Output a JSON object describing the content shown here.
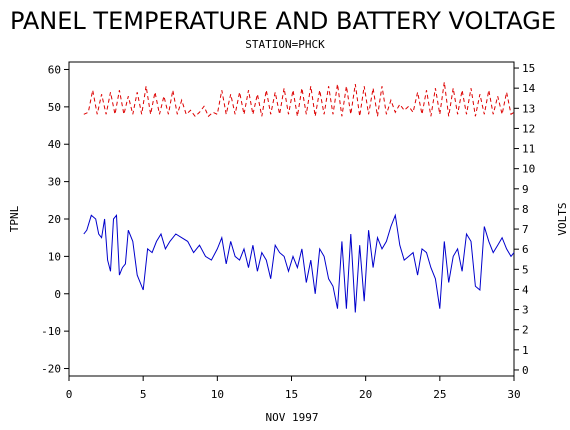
{
  "chart_data": {
    "type": "line",
    "title": "PANEL TEMPERATURE AND BATTERY VOLTAGE",
    "subtitle": "STATION=PHCK",
    "xlabel": "NOV 1997",
    "ylabel_left": "TPNL",
    "ylabel_right": "VOLTS",
    "xlim": [
      0,
      30
    ],
    "ylim_left": [
      -22,
      62
    ],
    "ylim_right": [
      -0.3,
      15.3
    ],
    "x_ticks": [
      0,
      5,
      10,
      15,
      20,
      25,
      30
    ],
    "y_ticks_left": [
      -20,
      -10,
      0,
      10,
      20,
      30,
      40,
      50,
      60
    ],
    "y_ticks_right": [
      0,
      1,
      2,
      3,
      4,
      5,
      6,
      7,
      8,
      9,
      10,
      11,
      12,
      13,
      14,
      15
    ],
    "grid": false,
    "series": [
      {
        "axis": "left",
        "color": "#0000cc",
        "style": "solid",
        "x": [
          1,
          1.2,
          1.5,
          1.8,
          2,
          2.2,
          2.4,
          2.6,
          2.8,
          3,
          3.2,
          3.4,
          3.6,
          3.8,
          4,
          4.3,
          4.6,
          5,
          5.3,
          5.6,
          5.9,
          6.2,
          6.5,
          6.8,
          7.2,
          7.6,
          8,
          8.4,
          8.8,
          9.2,
          9.6,
          10,
          10.3,
          10.6,
          10.9,
          11.2,
          11.5,
          11.8,
          12.1,
          12.4,
          12.7,
          13,
          13.3,
          13.6,
          13.9,
          14.2,
          14.5,
          14.8,
          15.1,
          15.4,
          15.7,
          16,
          16.3,
          16.6,
          16.9,
          17.2,
          17.5,
          17.8,
          18.1,
          18.4,
          18.7,
          19,
          19.3,
          19.6,
          19.9,
          20.2,
          20.5,
          20.8,
          21.1,
          21.4,
          21.7,
          22,
          22.3,
          22.6,
          22.9,
          23.2,
          23.5,
          23.8,
          24.1,
          24.4,
          24.7,
          25,
          25.3,
          25.6,
          25.9,
          26.2,
          26.5,
          26.8,
          27.1,
          27.4,
          27.7,
          28,
          28.3,
          28.6,
          28.9,
          29.2,
          29.5,
          29.8,
          30
        ],
        "y": [
          16,
          17,
          21,
          20,
          16,
          15,
          20,
          9,
          6,
          20,
          21,
          5,
          7,
          8,
          17,
          14,
          5,
          1,
          12,
          11,
          14,
          16,
          12,
          14,
          16,
          15,
          14,
          11,
          13,
          10,
          9,
          12,
          15,
          8,
          14,
          10,
          9,
          12,
          7,
          13,
          6,
          11,
          9,
          4,
          13,
          11,
          10,
          6,
          10,
          7,
          12,
          3,
          9,
          0,
          12,
          10,
          4,
          2,
          -4,
          14,
          -4,
          16,
          -5,
          13,
          -2,
          17,
          7,
          15,
          12,
          14,
          18,
          21,
          13,
          9,
          10,
          11,
          5,
          12,
          11,
          7,
          4,
          -4,
          14,
          3,
          10,
          12,
          6,
          16,
          14,
          2,
          1,
          18,
          14,
          11,
          13,
          15,
          12,
          10,
          11
        ]
      },
      {
        "axis": "right",
        "color": "#dd0000",
        "style": "dashed",
        "x": [
          1,
          1.3,
          1.6,
          1.9,
          2.2,
          2.5,
          2.8,
          3.1,
          3.4,
          3.7,
          4,
          4.3,
          4.6,
          4.9,
          5.2,
          5.5,
          5.8,
          6.1,
          6.4,
          6.7,
          7,
          7.3,
          7.6,
          7.9,
          8.2,
          8.5,
          8.8,
          9.1,
          9.4,
          9.7,
          10,
          10.3,
          10.6,
          10.9,
          11.2,
          11.5,
          11.8,
          12.1,
          12.4,
          12.7,
          13,
          13.3,
          13.6,
          13.9,
          14.2,
          14.5,
          14.8,
          15.1,
          15.4,
          15.7,
          16,
          16.3,
          16.6,
          16.9,
          17.2,
          17.5,
          17.8,
          18.1,
          18.4,
          18.7,
          19,
          19.3,
          19.6,
          19.9,
          20.2,
          20.5,
          20.8,
          21.1,
          21.4,
          21.7,
          22,
          22.3,
          22.6,
          22.9,
          23.2,
          23.5,
          23.8,
          24.1,
          24.4,
          24.7,
          25,
          25.3,
          25.6,
          25.9,
          26.2,
          26.5,
          26.8,
          27.1,
          27.4,
          27.7,
          28,
          28.3,
          28.6,
          28.9,
          29.2,
          29.5,
          29.8,
          30
        ],
        "y": [
          12.7,
          12.8,
          13.9,
          12.7,
          13.7,
          12.7,
          13.8,
          12.7,
          13.9,
          12.7,
          13.6,
          12.7,
          13.8,
          12.7,
          14.1,
          12.7,
          13.8,
          12.7,
          13.6,
          12.7,
          13.9,
          12.7,
          13.4,
          12.7,
          12.9,
          12.6,
          12.8,
          13.1,
          12.6,
          12.8,
          12.7,
          13.9,
          12.7,
          13.7,
          12.7,
          13.8,
          12.7,
          13.9,
          12.7,
          13.7,
          12.6,
          13.9,
          12.7,
          13.8,
          12.7,
          14.0,
          12.7,
          13.9,
          12.6,
          14.0,
          12.7,
          14.1,
          12.6,
          13.9,
          12.7,
          14.1,
          12.7,
          14.2,
          12.6,
          14.1,
          12.7,
          14.2,
          12.6,
          14.1,
          12.7,
          14.0,
          12.6,
          14.1,
          12.7,
          13.4,
          12.8,
          13.2,
          12.9,
          13.1,
          12.8,
          13.8,
          12.7,
          13.9,
          12.6,
          14.0,
          12.7,
          14.3,
          12.6,
          14.0,
          12.7,
          13.9,
          12.7,
          14.0,
          12.6,
          13.7,
          12.7,
          13.9,
          12.7,
          13.6,
          12.7,
          13.8,
          12.7,
          12.8
        ]
      }
    ]
  }
}
